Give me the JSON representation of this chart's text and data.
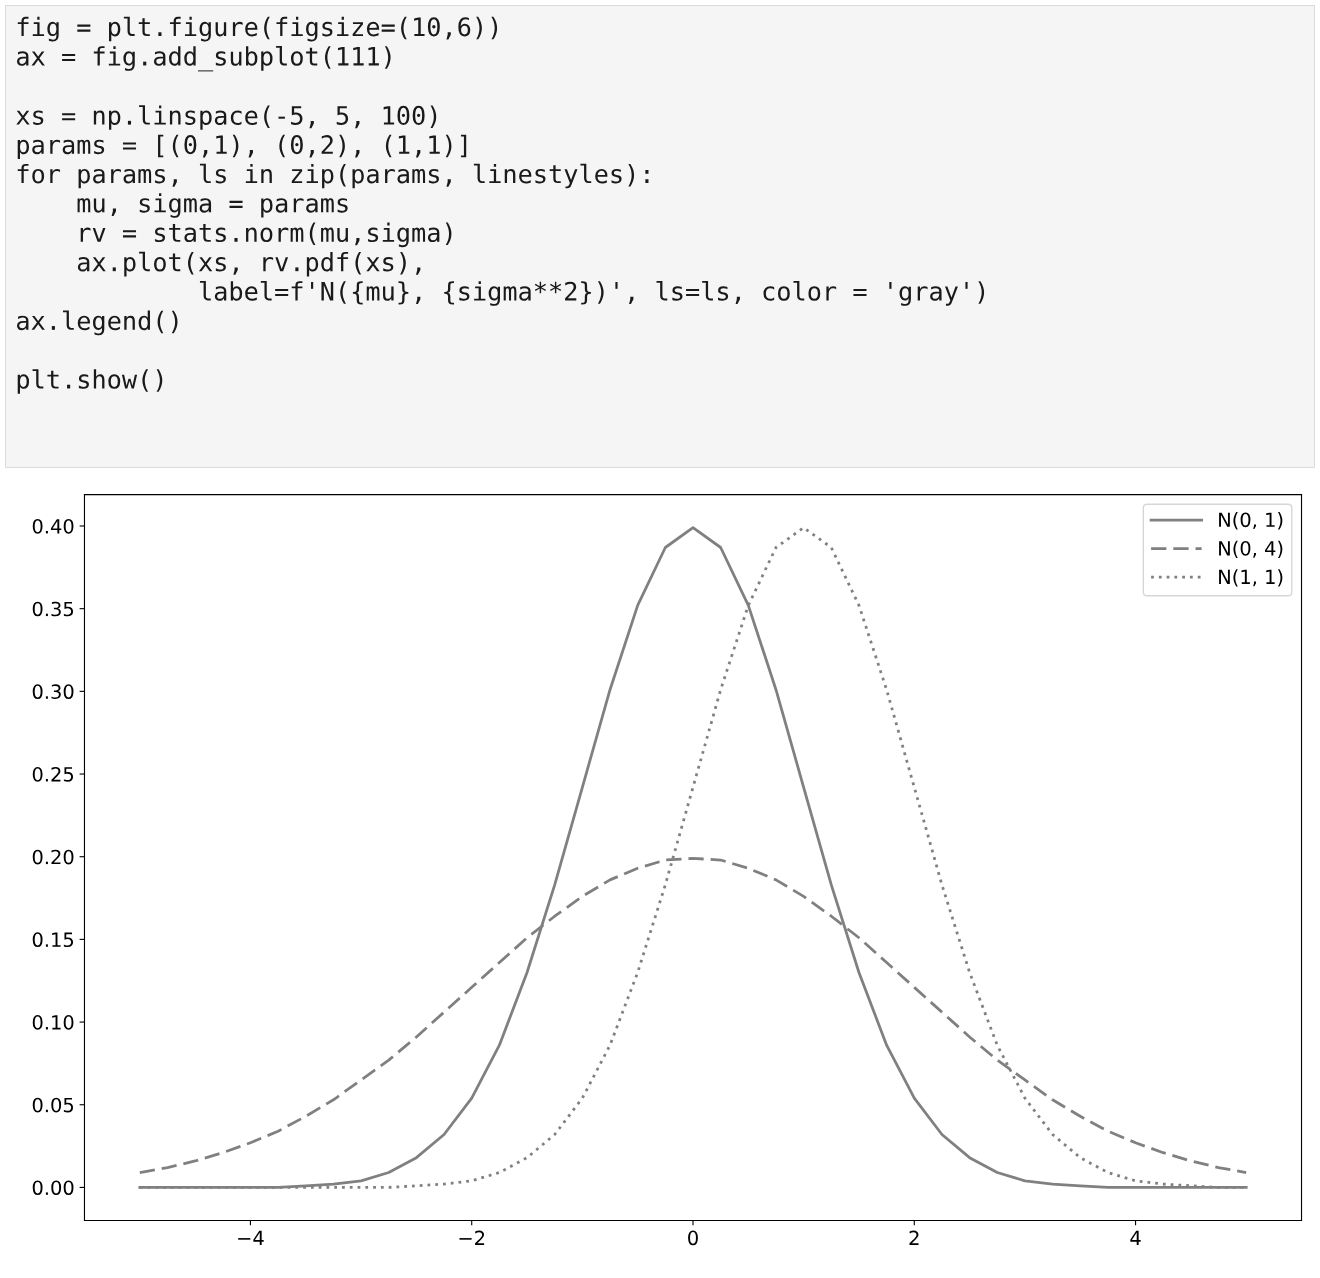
{
  "chart_data": [
    {
      "type": "other",
      "annotations": [
        "fig = plt.figure(figsize=(10,6))\nax = fig.add_subplot(111)\n\nxs = np.linspace(-5, 5, 100)\nparams = [(0,1), (0,2), (1,1)]\nfor params, ls in zip(params, linestyles):\n    mu, sigma = params\n    rv = stats.norm(mu,sigma)\n    ax.plot(xs, rv.pdf(xs),\n            label=f'N({mu}, {sigma**2})', ls=ls, color = 'gray')\nax.legend()\n\nplt.show()"
      ]
    },
    {
      "type": "line",
      "legend": "top right",
      "grid": false,
      "x": [
        -5,
        -4.75,
        -4.5,
        -4.25,
        -4,
        -3.75,
        -3.5,
        -3.25,
        -3,
        -2.75,
        -2.5,
        -2.25,
        -2,
        -1.75,
        -1.5,
        -1.25,
        -1,
        -0.75,
        -0.5,
        -0.25,
        0,
        0.25,
        0.5,
        0.75,
        1,
        1.25,
        1.5,
        1.75,
        2,
        2.25,
        2.5,
        2.75,
        3,
        3.25,
        3.5,
        3.75,
        4,
        4.25,
        4.5,
        4.75,
        5
      ],
      "xlim": [
        -5.5,
        5.5
      ],
      "xticks": [
        {
          "value": -4,
          "label": "−4"
        },
        {
          "value": -2,
          "label": "−2"
        },
        0,
        2,
        4
      ],
      "ylim": [
        -0.02,
        0.419
      ],
      "yticks": [
        {
          "value": 0,
          "label": "0.00"
        },
        0.05,
        {
          "value": 0.1,
          "label": "0.10"
        },
        0.15,
        {
          "value": 0.2,
          "label": "0.20"
        },
        0.25,
        {
          "value": 0.3,
          "label": "0.30"
        },
        0.35,
        {
          "value": 0.4,
          "label": "0.40"
        }
      ],
      "series": [
        {
          "name": "N(0, 1)",
          "color": "#808080",
          "line_style": "solid",
          "values": [
            0,
            0,
            0,
            0,
            0,
            0,
            0.001,
            0.002,
            0.004,
            0.009,
            0.018,
            0.032,
            0.054,
            0.086,
            0.13,
            0.183,
            0.242,
            0.301,
            0.352,
            0.387,
            0.399,
            0.387,
            0.352,
            0.301,
            0.242,
            0.183,
            0.13,
            0.086,
            0.054,
            0.032,
            0.018,
            0.009,
            0.004,
            0.002,
            0.001,
            0,
            0,
            0,
            0,
            0,
            0
          ]
        },
        {
          "name": "N(0, 4)",
          "color": "#808080",
          "line_style": "dashed",
          "values": [
            0.009,
            0.012,
            0.016,
            0.021,
            0.027,
            0.034,
            0.043,
            0.053,
            0.065,
            0.077,
            0.091,
            0.106,
            0.121,
            0.136,
            0.151,
            0.164,
            0.176,
            0.186,
            0.193,
            0.198,
            0.199,
            0.198,
            0.193,
            0.186,
            0.176,
            0.164,
            0.151,
            0.136,
            0.121,
            0.106,
            0.091,
            0.077,
            0.065,
            0.053,
            0.043,
            0.034,
            0.027,
            0.021,
            0.016,
            0.012,
            0.009
          ]
        },
        {
          "name": "N(1, 1)",
          "color": "#808080",
          "line_style": "dotted",
          "values": [
            0,
            0,
            0,
            0,
            0,
            0,
            0,
            0,
            0,
            0,
            0.001,
            0.002,
            0.004,
            0.009,
            0.018,
            0.032,
            0.054,
            0.086,
            0.13,
            0.183,
            0.242,
            0.301,
            0.352,
            0.387,
            0.399,
            0.387,
            0.352,
            0.301,
            0.242,
            0.183,
            0.13,
            0.086,
            0.054,
            0.032,
            0.018,
            0.009,
            0.004,
            0.002,
            0.001,
            0,
            0
          ]
        }
      ]
    }
  ]
}
